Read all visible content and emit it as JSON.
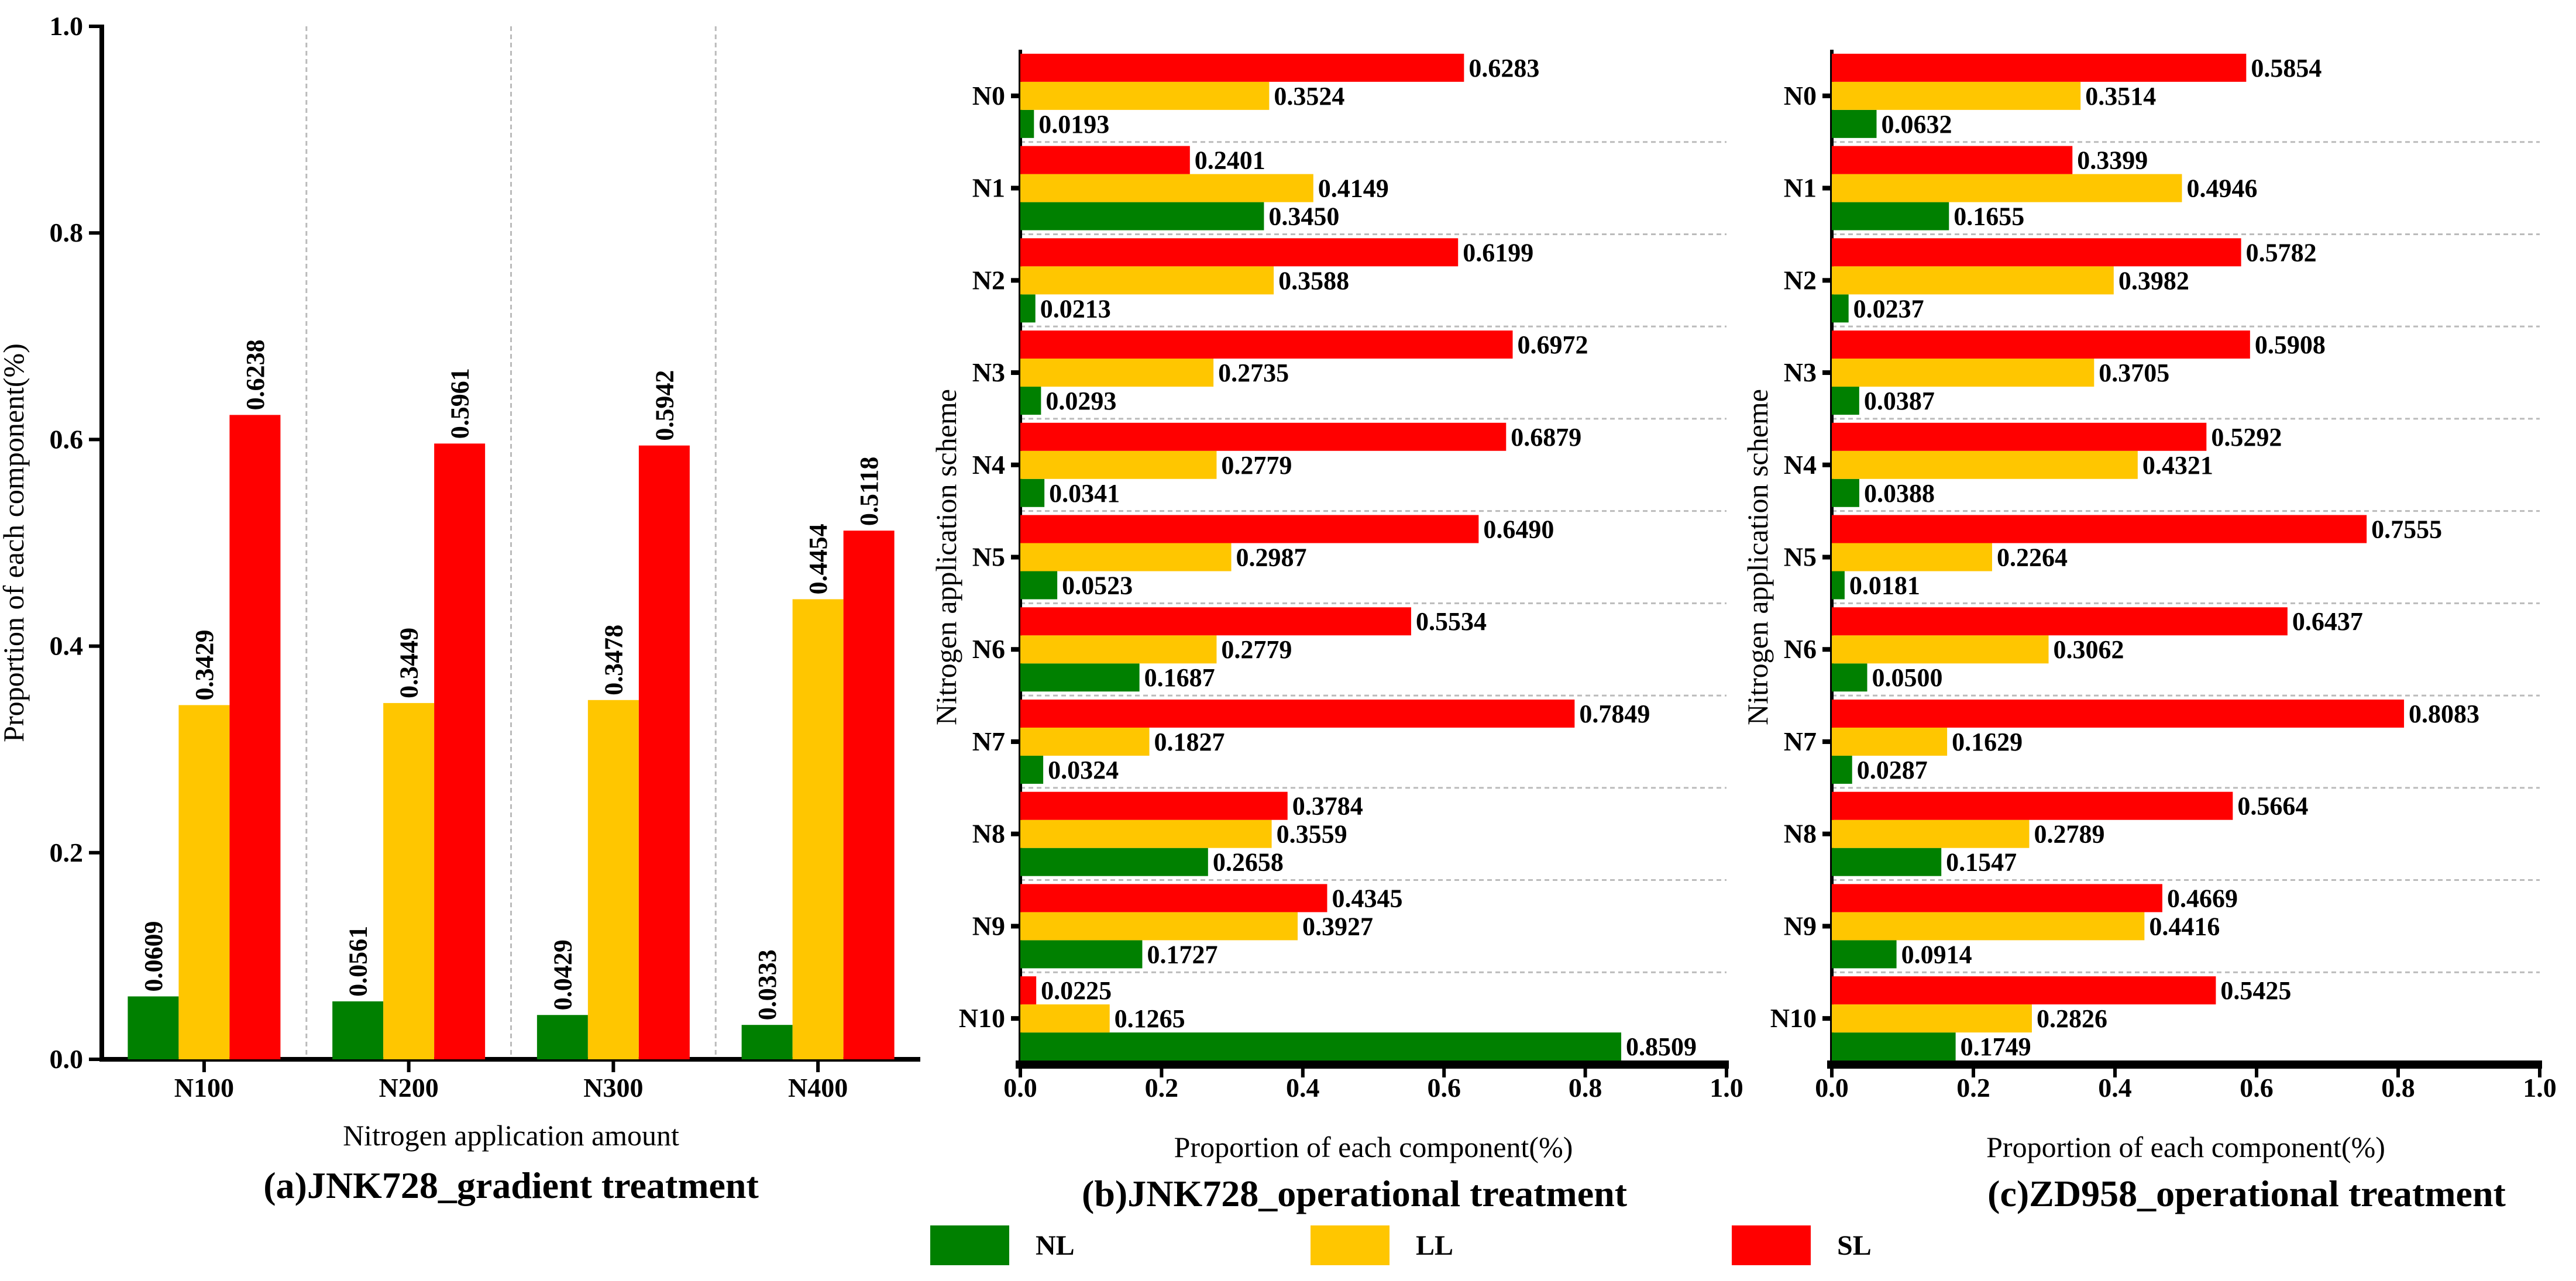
{
  "colors": {
    "NL": "#008000",
    "LL": "#FFC600",
    "SL": "#FF0000"
  },
  "legend": [
    {
      "name": "NL",
      "color": "#008000"
    },
    {
      "name": "LL",
      "color": "#FFC600"
    },
    {
      "name": "SL",
      "color": "#FF0000"
    }
  ],
  "chart_data": [
    {
      "type": "bar",
      "orientation": "vertical",
      "title": "(a)JNK728_gradient treatment",
      "xlabel": "Nitrogen application amount",
      "ylabel": "Proportion of each component(%)",
      "ylim": [
        0,
        1.0
      ],
      "yticks": [
        "0.0",
        "0.2",
        "0.4",
        "0.6",
        "0.8",
        "1.0"
      ],
      "categories": [
        "N100",
        "N200",
        "N300",
        "N400"
      ],
      "series": [
        {
          "name": "NL",
          "values": [
            0.0609,
            0.0561,
            0.0429,
            0.0333
          ],
          "labels": [
            "0.0609",
            "0.0561",
            "0.0429",
            "0.0333"
          ]
        },
        {
          "name": "LL",
          "values": [
            0.3429,
            0.3449,
            0.3478,
            0.4454
          ],
          "labels": [
            "0.3429",
            "0.3449",
            "0.3478",
            "0.4454"
          ]
        },
        {
          "name": "SL",
          "values": [
            0.6238,
            0.5961,
            0.5942,
            0.5118
          ],
          "labels": [
            "0.6238",
            "0.5961",
            "0.5942",
            "0.5118"
          ]
        }
      ]
    },
    {
      "type": "bar",
      "orientation": "horizontal",
      "title": "(b)JNK728_operational treatment",
      "xlabel": "Proportion of each component(%)",
      "ylabel": "Nitrogen application scheme",
      "xlim": [
        0,
        1.0
      ],
      "xticks": [
        "0.0",
        "0.2",
        "0.4",
        "0.6",
        "0.8",
        "1.0"
      ],
      "categories": [
        "N0",
        "N1",
        "N2",
        "N3",
        "N4",
        "N5",
        "N6",
        "N7",
        "N8",
        "N9",
        "N10"
      ],
      "series": [
        {
          "name": "NL",
          "values": [
            0.0193,
            0.345,
            0.0213,
            0.0293,
            0.0341,
            0.0523,
            0.1687,
            0.0324,
            0.2658,
            0.1727,
            0.8509
          ],
          "labels": [
            "0.0193",
            "0.3450",
            "0.0213",
            "0.0293",
            "0.0341",
            "0.0523",
            "0.1687",
            "0.0324",
            "0.2658",
            "0.1727",
            "0.8509"
          ]
        },
        {
          "name": "LL",
          "values": [
            0.3524,
            0.4149,
            0.3588,
            0.2735,
            0.2779,
            0.2987,
            0.2779,
            0.1827,
            0.3559,
            0.3927,
            0.1265
          ],
          "labels": [
            "0.3524",
            "0.4149",
            "0.3588",
            "0.2735",
            "0.2779",
            "0.2987",
            "0.2779",
            "0.1827",
            "0.3559",
            "0.3927",
            "0.1265"
          ]
        },
        {
          "name": "SL",
          "values": [
            0.6283,
            0.2401,
            0.6199,
            0.6972,
            0.6879,
            0.649,
            0.5534,
            0.7849,
            0.3784,
            0.4345,
            0.0225
          ],
          "labels": [
            "0.6283",
            "0.2401",
            "0.6199",
            "0.6972",
            "0.6879",
            "0.6490",
            "0.5534",
            "0.7849",
            "0.3784",
            "0.4345",
            "0.0225"
          ]
        }
      ]
    },
    {
      "type": "bar",
      "orientation": "horizontal",
      "title": "(c)ZD958_operational treatment",
      "xlabel": "Proportion of each component(%)",
      "ylabel": "Nitrogen application scheme",
      "xlim": [
        0,
        1.0
      ],
      "xticks": [
        "0.0",
        "0.2",
        "0.4",
        "0.6",
        "0.8",
        "1.0"
      ],
      "categories": [
        "N0",
        "N1",
        "N2",
        "N3",
        "N4",
        "N5",
        "N6",
        "N7",
        "N8",
        "N9",
        "N10"
      ],
      "series": [
        {
          "name": "NL",
          "values": [
            0.0632,
            0.1655,
            0.0237,
            0.0387,
            0.0388,
            0.0181,
            0.05,
            0.0287,
            0.1547,
            0.0914,
            0.1749
          ],
          "labels": [
            "0.0632",
            "0.1655",
            "0.0237",
            "0.0387",
            "0.0388",
            "0.0181",
            "0.0500",
            "0.0287",
            "0.1547",
            "0.0914",
            "0.1749"
          ]
        },
        {
          "name": "LL",
          "values": [
            0.3514,
            0.4946,
            0.3982,
            0.3705,
            0.4321,
            0.2264,
            0.3062,
            0.1629,
            0.2789,
            0.4416,
            0.2826
          ],
          "labels": [
            "0.3514",
            "0.4946",
            "0.3982",
            "0.3705",
            "0.4321",
            "0.2264",
            "0.3062",
            "0.1629",
            "0.2789",
            "0.4416",
            "0.2826"
          ]
        },
        {
          "name": "SL",
          "values": [
            0.5854,
            0.3399,
            0.5782,
            0.5908,
            0.5292,
            0.7555,
            0.6437,
            0.8083,
            0.5664,
            0.4669,
            0.5425
          ],
          "labels": [
            "0.5854",
            "0.3399",
            "0.5782",
            "0.5908",
            "0.5292",
            "0.7555",
            "0.6437",
            "0.8083",
            "0.5664",
            "0.4669",
            "0.5425"
          ]
        }
      ]
    }
  ]
}
